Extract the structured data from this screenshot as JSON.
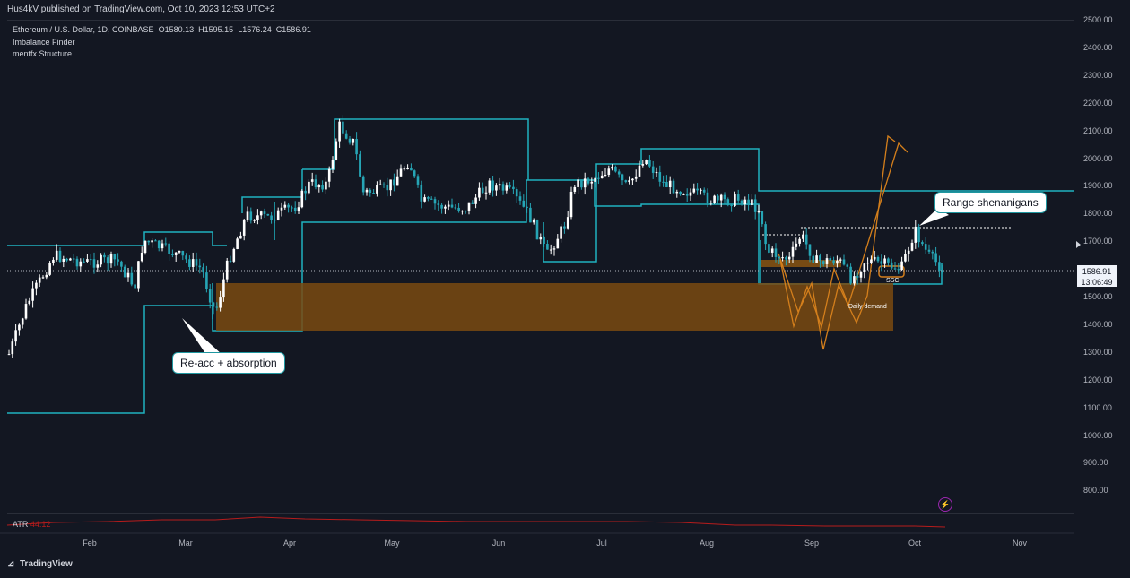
{
  "header": {
    "published_text": "Hus4kV published on TradingView.com, Oct 10, 2023 12:53 UTC+2"
  },
  "legend": {
    "symbol_line": "Ethereum / U.S. Dollar, 1D, COINBASE",
    "open_label": "O",
    "open": "1580.13",
    "high_label": "H",
    "high": "1595.15",
    "low_label": "L",
    "low": "1576.24",
    "close_label": "C",
    "close": "1586.91",
    "indicators": [
      "Imbalance Finder",
      "mentfx Structure"
    ]
  },
  "price_axis": {
    "ticks": [
      "2500.00",
      "2400.00",
      "2300.00",
      "2200.00",
      "2100.00",
      "2000.00",
      "1900.00",
      "1800.00",
      "1700.00",
      "1600.00",
      "1500.00",
      "1400.00",
      "1300.00",
      "1200.00",
      "1100.00",
      "1000.00",
      "900.00",
      "800.00"
    ],
    "last_price": "1586.91",
    "countdown": "13:06:49"
  },
  "time_axis": {
    "ticks": [
      "Feb",
      "Mar",
      "Apr",
      "May",
      "Jun",
      "Jul",
      "Aug",
      "Sep",
      "Oct",
      "Nov"
    ]
  },
  "annotations": {
    "callout_left": "Re-acc + absorption",
    "callout_right": "Range shenanigans",
    "zone_label": "Daily demand",
    "ssc_label": "SSC"
  },
  "atr": {
    "label": "ATR",
    "value": "44.12"
  },
  "footer": {
    "brand": "TradingView"
  },
  "colors": {
    "background": "#131722",
    "bull_candle": "#ffffff",
    "bear_candle": "#26a5b5",
    "structure_line": "#20b2c0",
    "demand_zone": "#7a4a10",
    "projection": "#d47f1c",
    "atr_line": "#b71c1c"
  },
  "chart_data": {
    "type": "candlestick",
    "title": "Ethereum / U.S. Dollar, 1D, COINBASE",
    "xlabel": "",
    "ylabel": "",
    "ylim": [
      800,
      2500
    ],
    "x": [
      "Feb",
      "Mar",
      "Apr",
      "May",
      "Jun",
      "Jul",
      "Aug",
      "Sep",
      "Oct"
    ],
    "series": [
      {
        "name": "close_trend",
        "values": [
          1640,
          1600,
          1790,
          1870,
          1800,
          1860,
          1850,
          1640,
          1590
        ]
      }
    ],
    "last": 1586.91,
    "zones": [
      {
        "name": "Daily demand",
        "from": 1370,
        "to": 1545
      }
    ],
    "dotted_levels": [
      1745,
      1720
    ]
  }
}
